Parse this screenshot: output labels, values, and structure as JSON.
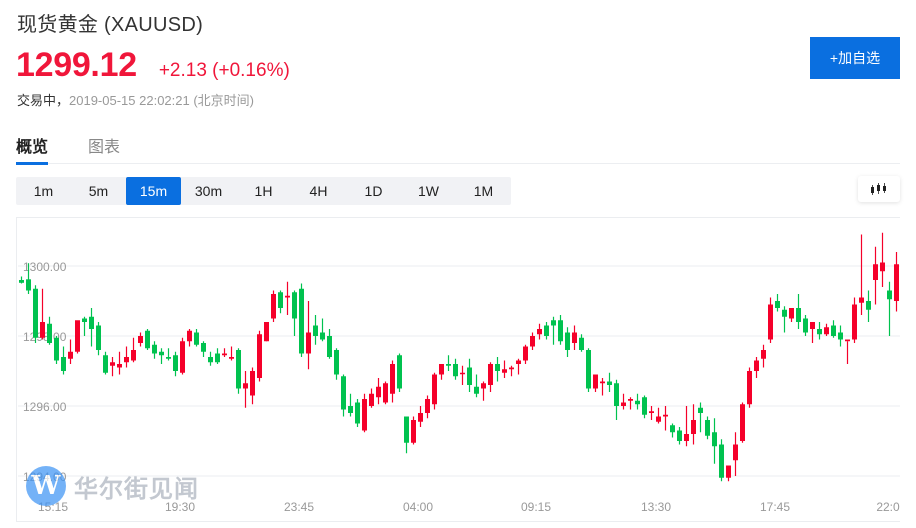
{
  "header": {
    "title": "现货黄金 (XAUUSD)",
    "price": "1299.12",
    "change": "+2.13 (+0.16%)",
    "status_label": "交易中，",
    "status_time": "2019-05-15 22:02:21 (北京时间)",
    "add_button": "+加自选"
  },
  "tabs": [
    {
      "label": "概览",
      "active": true
    },
    {
      "label": "图表",
      "active": false
    }
  ],
  "periods": [
    {
      "label": "1m",
      "active": false
    },
    {
      "label": "5m",
      "active": false
    },
    {
      "label": "15m",
      "active": true
    },
    {
      "label": "30m",
      "active": false
    },
    {
      "label": "1H",
      "active": false
    },
    {
      "label": "4H",
      "active": false
    },
    {
      "label": "1D",
      "active": false
    },
    {
      "label": "1W",
      "active": false
    },
    {
      "label": "1M",
      "active": false
    }
  ],
  "chart_type_icon": "candlestick-icon",
  "watermark": {
    "logo": "W",
    "text": "华尔街见闻"
  },
  "colors": {
    "up": "#f5002a",
    "down": "#00c24f",
    "accent": "#0a6fe0",
    "price": "#f0163a",
    "grid": "#ebedf0",
    "axis_text": "#999999"
  },
  "chart_data": {
    "type": "candlestick",
    "title": "XAUUSD 15m",
    "xlabel": "",
    "ylabel": "",
    "ylim": [
      1293.5,
      1301.4
    ],
    "grid": true,
    "y_ticks": [
      "1300.00",
      "1298.00",
      "1296.00",
      "1294.00"
    ],
    "x_ticks": [
      "15:15",
      "19:30",
      "23:45",
      "04:00",
      "09:15",
      "13:30",
      "17:45",
      "22:0"
    ],
    "legend": null,
    "up_color_meaning": "red = rise, green = fall",
    "candles": [
      [
        1299.6,
        1299.7,
        1299.5,
        1299.52
      ],
      [
        1299.62,
        1300.08,
        1299.2,
        1299.3
      ],
      [
        1299.35,
        1299.45,
        1297.8,
        1297.95
      ],
      [
        1297.95,
        1299.35,
        1297.9,
        1298.4
      ],
      [
        1298.35,
        1298.55,
        1297.75,
        1297.8
      ],
      [
        1297.95,
        1298.0,
        1297.2,
        1297.3
      ],
      [
        1297.4,
        1297.7,
        1296.9,
        1297.0
      ],
      [
        1297.35,
        1297.9,
        1297.2,
        1297.55
      ],
      [
        1297.55,
        1298.35,
        1297.5,
        1298.45
      ],
      [
        1298.5,
        1298.55,
        1298.0,
        1298.4
      ],
      [
        1298.55,
        1298.8,
        1297.7,
        1298.2
      ],
      [
        1298.3,
        1298.4,
        1297.45,
        1297.6
      ],
      [
        1297.45,
        1297.55,
        1296.9,
        1296.95
      ],
      [
        1297.15,
        1297.4,
        1296.85,
        1297.25
      ],
      [
        1297.1,
        1297.55,
        1296.9,
        1297.2
      ],
      [
        1297.25,
        1297.7,
        1297.1,
        1297.4
      ],
      [
        1297.3,
        1297.95,
        1297.25,
        1297.6
      ],
      [
        1297.8,
        1298.1,
        1297.7,
        1298.0
      ],
      [
        1298.15,
        1298.2,
        1297.6,
        1297.65
      ],
      [
        1297.75,
        1297.85,
        1297.35,
        1297.5
      ],
      [
        1297.55,
        1297.65,
        1297.2,
        1297.45
      ],
      [
        1297.4,
        1297.65,
        1297.3,
        1297.35
      ],
      [
        1297.45,
        1297.55,
        1296.85,
        1297.0
      ],
      [
        1296.95,
        1297.95,
        1296.9,
        1297.85
      ],
      [
        1297.85,
        1298.2,
        1297.7,
        1298.15
      ],
      [
        1298.1,
        1298.2,
        1297.7,
        1297.75
      ],
      [
        1297.8,
        1297.85,
        1297.4,
        1297.55
      ],
      [
        1297.4,
        1297.55,
        1297.15,
        1297.25
      ],
      [
        1297.5,
        1297.65,
        1297.2,
        1297.25
      ],
      [
        1297.45,
        1297.65,
        1297.4,
        1297.5
      ],
      [
        1297.35,
        1297.7,
        1297.3,
        1297.4
      ],
      [
        1297.6,
        1297.65,
        1296.35,
        1296.5
      ],
      [
        1296.5,
        1297.0,
        1295.95,
        1296.65
      ],
      [
        1296.3,
        1297.1,
        1296.05,
        1297.0
      ],
      [
        1296.8,
        1298.15,
        1296.7,
        1298.05
      ],
      [
        1297.85,
        1298.4,
        1297.85,
        1298.4
      ],
      [
        1298.5,
        1299.3,
        1298.4,
        1299.2
      ],
      [
        1299.25,
        1299.3,
        1298.65,
        1298.8
      ],
      [
        1299.1,
        1299.55,
        1298.6,
        1299.15
      ],
      [
        1299.25,
        1299.3,
        1298.0,
        1298.5
      ],
      [
        1299.35,
        1299.5,
        1297.4,
        1297.5
      ],
      [
        1297.5,
        1299.0,
        1297.05,
        1298.1
      ],
      [
        1298.3,
        1298.6,
        1297.75,
        1298.0
      ],
      [
        1298.1,
        1298.5,
        1297.85,
        1297.9
      ],
      [
        1298.0,
        1298.2,
        1297.35,
        1297.4
      ],
      [
        1297.6,
        1297.65,
        1296.75,
        1296.9
      ],
      [
        1296.85,
        1296.9,
        1295.7,
        1295.9
      ],
      [
        1296.0,
        1296.35,
        1295.7,
        1295.8
      ],
      [
        1296.1,
        1296.2,
        1295.4,
        1295.5
      ],
      [
        1295.3,
        1296.35,
        1295.25,
        1296.2
      ],
      [
        1296.0,
        1296.5,
        1295.95,
        1296.35
      ],
      [
        1296.25,
        1296.8,
        1296.05,
        1296.55
      ],
      [
        1296.1,
        1296.7,
        1296.05,
        1296.65
      ],
      [
        1296.35,
        1297.3,
        1296.1,
        1297.2
      ],
      [
        1297.45,
        1297.5,
        1296.4,
        1296.5
      ],
      [
        1295.7,
        1295.7,
        1294.65,
        1294.95
      ],
      [
        1294.95,
        1295.7,
        1294.9,
        1295.6
      ],
      [
        1295.55,
        1296.0,
        1295.4,
        1295.8
      ],
      [
        1295.8,
        1296.3,
        1295.65,
        1296.2
      ],
      [
        1296.05,
        1296.95,
        1295.9,
        1296.9
      ],
      [
        1296.9,
        1297.2,
        1296.75,
        1297.2
      ],
      [
        1297.2,
        1297.45,
        1297.0,
        1297.15
      ],
      [
        1297.2,
        1297.35,
        1296.75,
        1296.85
      ],
      [
        1296.95,
        1297.15,
        1296.6,
        1296.95
      ],
      [
        1297.1,
        1297.35,
        1296.4,
        1296.6
      ],
      [
        1296.55,
        1296.9,
        1296.25,
        1296.35
      ],
      [
        1296.5,
        1296.7,
        1296.15,
        1296.65
      ],
      [
        1296.6,
        1297.25,
        1296.4,
        1297.2
      ],
      [
        1297.2,
        1297.4,
        1296.7,
        1297.0
      ],
      [
        1296.95,
        1297.3,
        1296.8,
        1297.05
      ],
      [
        1297.05,
        1297.15,
        1296.85,
        1297.1
      ],
      [
        1297.2,
        1297.35,
        1296.9,
        1297.3
      ],
      [
        1297.3,
        1297.75,
        1297.2,
        1297.7
      ],
      [
        1297.7,
        1298.1,
        1297.6,
        1298.0
      ],
      [
        1298.05,
        1298.35,
        1297.9,
        1298.2
      ],
      [
        1298.3,
        1298.4,
        1297.9,
        1298.0
      ],
      [
        1298.45,
        1298.55,
        1297.75,
        1298.3
      ],
      [
        1298.45,
        1298.6,
        1297.75,
        1297.85
      ],
      [
        1298.1,
        1298.25,
        1297.4,
        1297.6
      ],
      [
        1297.8,
        1298.3,
        1297.6,
        1298.1
      ],
      [
        1297.95,
        1298.05,
        1297.55,
        1297.6
      ],
      [
        1297.6,
        1297.65,
        1296.4,
        1296.5
      ],
      [
        1296.5,
        1296.8,
        1296.4,
        1296.9
      ],
      [
        1296.65,
        1296.8,
        1296.3,
        1296.7
      ],
      [
        1296.7,
        1296.95,
        1296.4,
        1296.6
      ],
      [
        1296.65,
        1296.75,
        1295.6,
        1296.0
      ],
      [
        1296.0,
        1296.35,
        1295.9,
        1296.1
      ],
      [
        1296.15,
        1296.25,
        1295.9,
        1296.2
      ],
      [
        1296.15,
        1296.35,
        1295.9,
        1296.05
      ],
      [
        1296.25,
        1296.3,
        1295.65,
        1295.75
      ],
      [
        1295.8,
        1296.0,
        1295.6,
        1295.85
      ],
      [
        1295.55,
        1295.95,
        1295.5,
        1295.7
      ],
      [
        1295.7,
        1296.0,
        1295.3,
        1295.75
      ],
      [
        1295.45,
        1295.5,
        1295.1,
        1295.25
      ],
      [
        1295.3,
        1295.4,
        1294.9,
        1295.0
      ],
      [
        1295.0,
        1296.0,
        1294.85,
        1295.2
      ],
      [
        1295.2,
        1296.05,
        1294.9,
        1295.6
      ],
      [
        1295.95,
        1296.1,
        1295.25,
        1295.8
      ],
      [
        1295.6,
        1295.7,
        1295.05,
        1295.15
      ],
      [
        1295.25,
        1295.65,
        1294.35,
        1294.85
      ],
      [
        1294.9,
        1295.05,
        1293.85,
        1293.95
      ],
      [
        1293.95,
        1294.3,
        1293.85,
        1294.3
      ],
      [
        1294.45,
        1295.25,
        1294.0,
        1294.9
      ],
      [
        1295.0,
        1296.1,
        1294.95,
        1296.05
      ],
      [
        1296.05,
        1297.1,
        1295.95,
        1297.0
      ],
      [
        1297.0,
        1297.4,
        1296.8,
        1297.3
      ],
      [
        1297.35,
        1297.75,
        1297.1,
        1297.6
      ],
      [
        1297.9,
        1299.1,
        1297.8,
        1298.9
      ],
      [
        1299.0,
        1299.2,
        1298.7,
        1298.8
      ],
      [
        1298.75,
        1298.85,
        1298.1,
        1298.55
      ],
      [
        1298.5,
        1298.8,
        1298.4,
        1298.8
      ],
      [
        1298.8,
        1299.2,
        1298.2,
        1298.4
      ],
      [
        1298.5,
        1298.6,
        1298.0,
        1298.1
      ],
      [
        1298.2,
        1298.3,
        1297.8,
        1298.4
      ],
      [
        1298.2,
        1298.4,
        1297.9,
        1298.05
      ],
      [
        1298.05,
        1298.35,
        1298.0,
        1298.25
      ],
      [
        1298.3,
        1298.45,
        1297.95,
        1298.0
      ],
      [
        1298.1,
        1298.3,
        1297.7,
        1297.9
      ],
      [
        1297.85,
        1297.85,
        1297.2,
        1297.9
      ],
      [
        1297.9,
        1299.1,
        1297.8,
        1298.9
      ],
      [
        1298.95,
        1300.9,
        1298.6,
        1299.1
      ],
      [
        1299.0,
        1299.3,
        1298.4,
        1298.75
      ],
      [
        1299.6,
        1300.55,
        1298.9,
        1300.05
      ],
      [
        1299.85,
        1300.95,
        1299.4,
        1300.1
      ],
      [
        1299.3,
        1299.55,
        1298.0,
        1299.05
      ],
      [
        1299.0,
        1300.4,
        1298.7,
        1300.05
      ],
      [
        1299.95,
        1300.35,
        1299.55,
        1300.05
      ],
      [
        1299.8,
        1300.15,
        1299.0,
        1299.3
      ],
      [
        1299.05,
        1299.15,
        1298.8,
        1299.12
      ]
    ]
  }
}
